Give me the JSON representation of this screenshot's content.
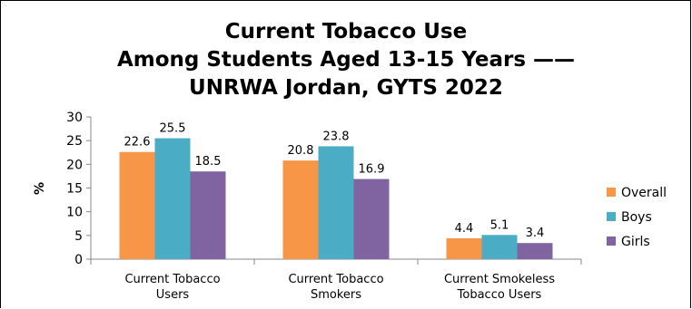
{
  "chart_data": {
    "type": "bar",
    "title_lines": [
      "Current Tobacco Use",
      "Among Students Aged 13-15 Years ——",
      "UNRWA Jordan, GYTS 2022"
    ],
    "ylabel": "%",
    "xlabel": "",
    "ylim": [
      0,
      30
    ],
    "yticks": [
      0,
      5,
      10,
      15,
      20,
      25,
      30
    ],
    "categories": [
      [
        "Current Tobacco",
        "Users"
      ],
      [
        "Current Tobacco",
        "Smokers"
      ],
      [
        "Current Smokeless",
        "Tobacco Users"
      ]
    ],
    "series": [
      {
        "name": "Overall",
        "color": "#F79646",
        "values": [
          22.6,
          20.8,
          4.4
        ]
      },
      {
        "name": "Boys",
        "color": "#4BACC6",
        "values": [
          25.5,
          23.8,
          5.1
        ]
      },
      {
        "name": "Girls",
        "color": "#8064A2",
        "values": [
          18.5,
          16.9,
          3.4
        ]
      }
    ],
    "grid": false,
    "legend_position": "right"
  }
}
